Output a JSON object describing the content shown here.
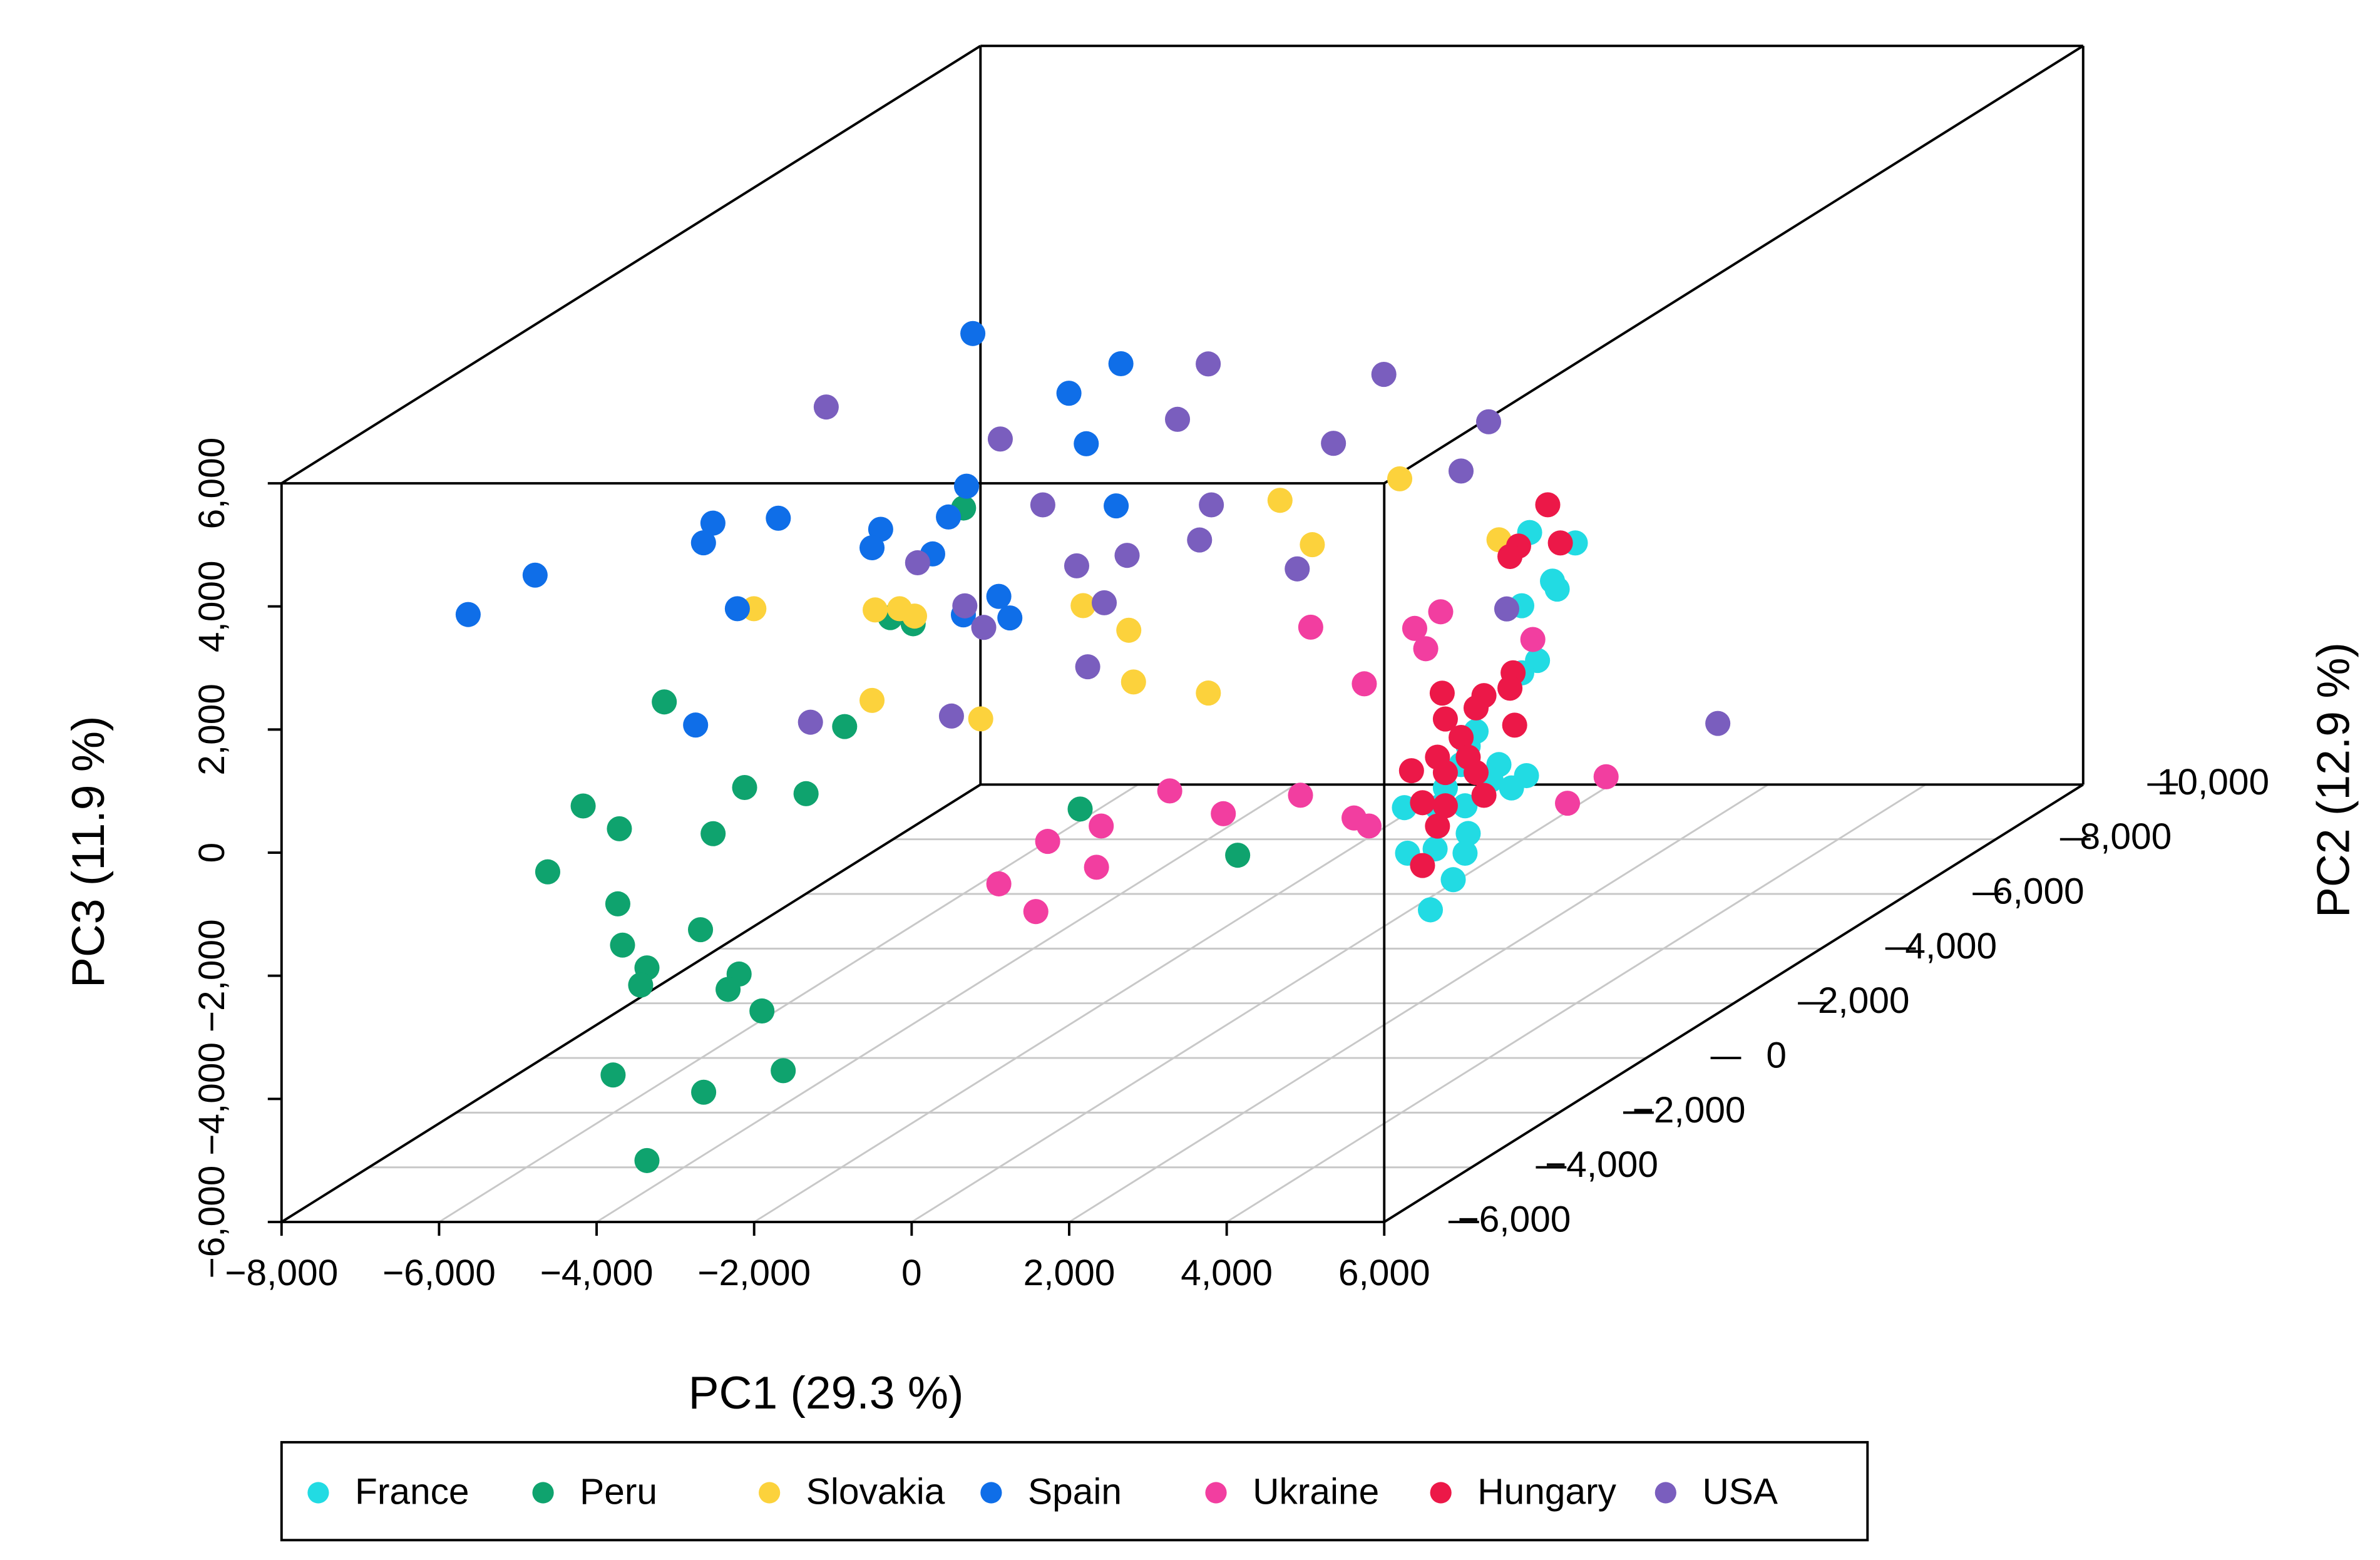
{
  "chart_data": {
    "type": "scatter3d",
    "xlabel": "PC1 (29.3 %)",
    "ylabel": "PC2 (12.9 %)",
    "zlabel": "PC3 (11.9 %)",
    "xlim": [
      -8000,
      6000
    ],
    "ylim": [
      -6000,
      10000
    ],
    "zlim": [
      -6000,
      6000
    ],
    "xticks": [
      {
        "value": -8000,
        "label": "−8,000"
      },
      {
        "value": -6000,
        "label": "−6,000"
      },
      {
        "value": -4000,
        "label": "−4,000"
      },
      {
        "value": -2000,
        "label": "−2,000"
      },
      0,
      {
        "value": 2000,
        "label": "2,000"
      },
      {
        "value": 4000,
        "label": "4,000"
      },
      {
        "value": 6000,
        "label": "6,000"
      }
    ],
    "yticks": [
      {
        "value": -6000,
        "label": "−6,000"
      },
      {
        "value": -4000,
        "label": "−4,000"
      },
      {
        "value": -2000,
        "label": "−2,000"
      },
      0,
      {
        "value": 2000,
        "label": "2,000"
      },
      {
        "value": 4000,
        "label": "4,000"
      },
      {
        "value": 6000,
        "label": "6,000"
      },
      {
        "value": 8000,
        "label": "8,000"
      },
      {
        "value": 10000,
        "label": "10,000"
      }
    ],
    "zticks": [
      {
        "value": -6000,
        "label": "−6,000"
      },
      {
        "value": -4000,
        "label": "−4,000"
      },
      {
        "value": -2000,
        "label": "−2,000"
      },
      0,
      {
        "value": 2000,
        "label": "2,000"
      },
      {
        "value": 4000,
        "label": "4,000"
      },
      {
        "value": 6000,
        "label": "6,000"
      }
    ],
    "grid": true,
    "legend": "bottom",
    "series": [
      {
        "name": "France",
        "color": "#22dbe3",
        "x": [
          2880,
          2300,
          2590,
          2650,
          2200,
          2400,
          2200,
          1620,
          1520,
          1910,
          2260,
          2070,
          1810,
          1430,
          1230,
          710,
          1130,
          1480,
          1520,
          1100,
          750,
          1480,
          1330,
          1040
        ],
        "y": [
          4000,
          4000,
          4000,
          4000,
          4000,
          4000,
          4000,
          4000,
          4000,
          4000,
          4000,
          4000,
          4000,
          4000,
          4000,
          4000,
          4000,
          4000,
          4000,
          4000,
          4000,
          4000,
          4000,
          4000
        ],
        "z": [
          590,
          760,
          -30,
          -160,
          -430,
          -1320,
          -1520,
          -2470,
          -2710,
          -3010,
          -3190,
          -3390,
          -3260,
          -3010,
          -3390,
          -3710,
          -3710,
          -3680,
          -4130,
          -4380,
          -4450,
          -4450,
          -4880,
          -5370
        ]
      },
      {
        "name": "Peru",
        "color": "#0fa36e",
        "x": [
          -450,
          -1380,
          -1090,
          -4250,
          -1960,
          -3230,
          -2450,
          -5280,
          -4820,
          -3630,
          -5730,
          -4840,
          -3790,
          -4780,
          -4470,
          -4550,
          -3300,
          -3440,
          -3010,
          -4900,
          -3750,
          -2740,
          -4470,
          1030,
          3030
        ],
        "y": [
          -4000,
          -4000,
          -4000,
          -4000,
          -4000,
          -4000,
          -4000,
          -4000,
          -4000,
          -4000,
          -4000,
          -4000,
          -4000,
          -4000,
          -4000,
          -4000,
          -4000,
          -4000,
          -4000,
          -4000,
          -4000,
          -4000,
          -4000,
          -4000,
          -4000
        ],
        "z": [
          4710,
          2930,
          2830,
          1560,
          1160,
          170,
          70,
          -130,
          -500,
          -580,
          -1200,
          -1720,
          -2140,
          -2390,
          -2760,
          -3040,
          -2860,
          -3110,
          -3460,
          -4500,
          -4780,
          -4430,
          -5890,
          -180,
          -930
        ]
      },
      {
        "name": "Slovakia",
        "color": "#fcd23c",
        "x": [
          1760,
          240,
          650,
          3020,
          -6440,
          -4900,
          -4590,
          -4400,
          -2260,
          -1680,
          -1620,
          -670,
          -4940,
          -3560
        ],
        "y": [
          2000,
          2000,
          2000,
          2000,
          2000,
          2000,
          2000,
          2000,
          2000,
          2000,
          2000,
          2000,
          2000,
          2000
        ],
        "z": [
          2520,
          2170,
          1450,
          1530,
          410,
          390,
          410,
          290,
          460,
          60,
          -780,
          -960,
          -1080,
          -1380
        ]
      },
      {
        "name": "Spain",
        "color": "#0f6ee8",
        "x": [
          -6740,
          -5890,
          -3660,
          -1780,
          -2440,
          -2220,
          -3740,
          -1840,
          -6130,
          -6960,
          -7080,
          -4830,
          -3970,
          -4940,
          -4170,
          -3330,
          -3190,
          -3780,
          -6650,
          -7180
        ],
        "y": [
          -4000,
          -4000,
          2000,
          2000,
          2000,
          2000,
          2000,
          2000,
          2000,
          2000,
          2000,
          2000,
          2000,
          2000,
          2000,
          2000,
          2000,
          2000,
          2000,
          2000
        ],
        "z": [
          2980,
          3620,
          4880,
          4390,
          3910,
          3090,
          2400,
          2080,
          1880,
          1800,
          1480,
          1700,
          1900,
          1400,
          1300,
          610,
          260,
          310,
          410,
          -1480
        ]
      },
      {
        "name": "Ukraine",
        "color": "#f23ea0",
        "x": [
          630,
          1950,
          2280,
          2090,
          3450,
          1310,
          4380,
          3890,
          500,
          1180,
          1370,
          -480,
          -1160,
          -2030,
          -2710,
          -2090,
          -3330,
          -2860
        ],
        "y": [
          2000,
          2000,
          2000,
          2000,
          2000,
          2000,
          2000,
          2000,
          2000,
          2000,
          2000,
          2000,
          2000,
          2000,
          2000,
          2000,
          2000,
          2000
        ],
        "z": [
          110,
          90,
          360,
          -240,
          -90,
          -810,
          -2320,
          -2750,
          -2620,
          -2990,
          -3120,
          -2920,
          -2550,
          -3120,
          -3370,
          -3790,
          -4060,
          -4510
        ]
      },
      {
        "name": "Hungary",
        "color": "#ec1848",
        "x": [
          2530,
          2160,
          2050,
          2690,
          2090,
          2050,
          2110,
          1720,
          1190,
          1230,
          1430,
          1620,
          1130,
          1520,
          800,
          1230,
          1620,
          1720,
          940,
          1230,
          1130,
          940
        ],
        "y": [
          4000,
          4000,
          4000,
          4000,
          4000,
          4000,
          4000,
          4000,
          4000,
          4000,
          4000,
          4000,
          4000,
          4000,
          4000,
          4000,
          4000,
          4000,
          4000,
          4000,
          4000,
          4000
        ],
        "z": [
          1210,
          540,
          370,
          590,
          -1520,
          -1770,
          -2370,
          -1890,
          -1850,
          -2270,
          -2570,
          -2090,
          -2890,
          -2890,
          -3110,
          -3140,
          -3140,
          -3510,
          -3630,
          -3680,
          -4010,
          -4650
        ]
      },
      {
        "name": "USA",
        "color": "#7a5ebe",
        "x": [
          -7740,
          -5530,
          -2890,
          -3280,
          -660,
          -1300,
          670,
          320,
          -4990,
          -2850,
          -3000,
          -3920,
          -4560,
          -6580,
          -1760,
          -5980,
          -5740,
          -4210,
          -4420,
          -7940,
          -6150,
          900,
          3580
        ],
        "y": [
          6000,
          6000,
          6000,
          6000,
          6000,
          6000,
          6000,
          6000,
          6000,
          6000,
          6000,
          6000,
          6000,
          6000,
          6000,
          6000,
          6000,
          6000,
          6000,
          6000,
          6000,
          6000,
          6000
        ],
        "z": [
          1910,
          1390,
          2610,
          1710,
          2440,
          1320,
          1670,
          870,
          320,
          320,
          -250,
          -500,
          -670,
          -620,
          -720,
          -1320,
          -1670,
          -1270,
          -2310,
          -3210,
          -3110,
          -1370,
          -3230
        ]
      }
    ]
  }
}
